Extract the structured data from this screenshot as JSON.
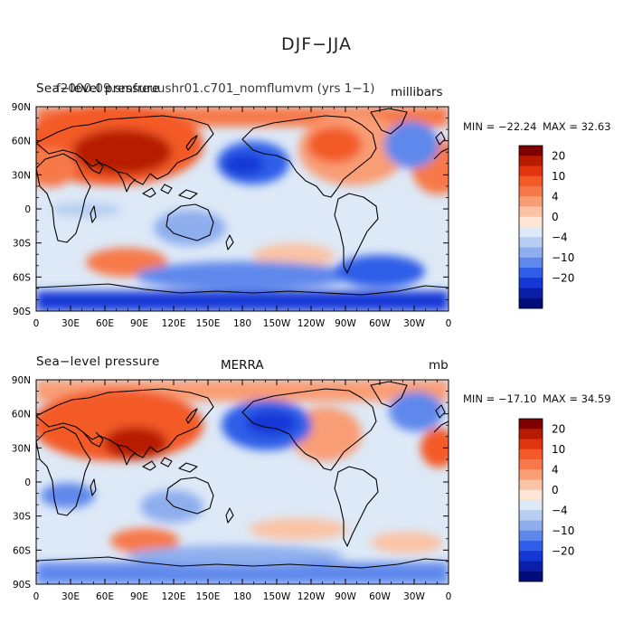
{
  "main_title": "DJF−JJA",
  "panels": [
    {
      "left_title": "Sea−level pressure",
      "overlay_title": "f2000.09.smfreuushr01.c701_nomflumvm (yrs 1−1)",
      "right_title": "millibars",
      "min_label": "MIN = −22.24",
      "max_label": "MAX =  32.63"
    },
    {
      "left_title": "Sea−level pressure",
      "center_title": "MERRA",
      "right_title": "mb",
      "min_label": "MIN = −17.10",
      "max_label": "MAX =  34.59"
    }
  ],
  "lat_labels": [
    "90N",
    "60N",
    "30N",
    "0",
    "30S",
    "60S",
    "90S"
  ],
  "lon_labels": [
    "0",
    "30E",
    "60E",
    "90E",
    "120E",
    "150E",
    "180",
    "150W",
    "120W",
    "90W",
    "60W",
    "30W",
    "0"
  ],
  "colorbar": {
    "labels": [
      "20",
      "10",
      "4",
      "0",
      "−4",
      "−10",
      "−20"
    ],
    "colors_top_to_bottom": [
      "#7f0000",
      "#b71c00",
      "#e0350f",
      "#f35a28",
      "#f7794a",
      "#f99d75",
      "#fbc3a5",
      "#fde6d6",
      "#dde9f7",
      "#b7cdf1",
      "#8eaeee",
      "#5f88ec",
      "#2f5fe8",
      "#1437d6",
      "#0a1fa8",
      "#000d7a"
    ]
  },
  "legend_colors": {
    "land_outline": "#000000"
  }
}
